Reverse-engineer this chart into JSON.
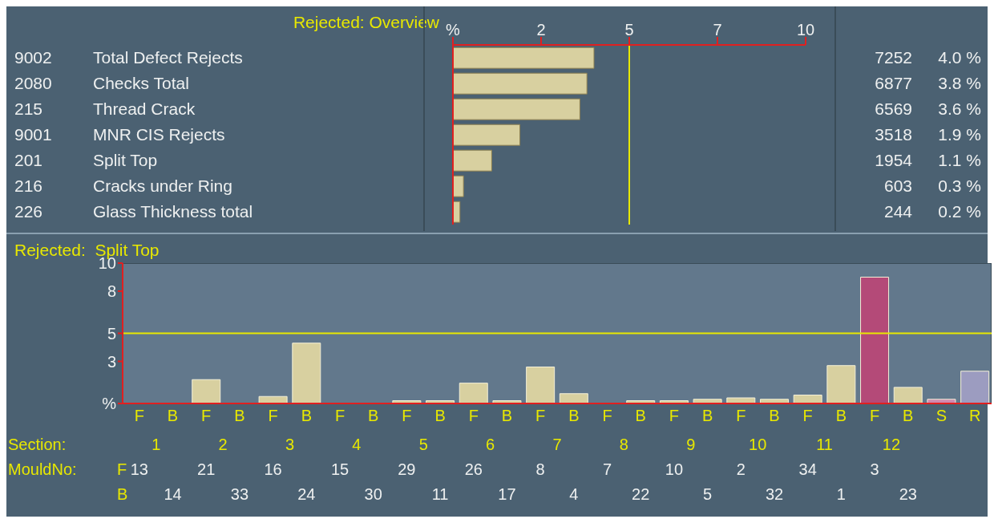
{
  "chart_data": [
    {
      "type": "bar",
      "orientation": "horizontal",
      "title": "Rejected: Overview",
      "categories": [
        "9002 Total Defect Rejects",
        "2080 Checks Total",
        "215 Thread Crack",
        "9001 MNR CIS Rejects",
        "201 Split Top",
        "216 Cracks under Ring",
        "226 Glass Thickness total"
      ],
      "values": [
        4.0,
        3.8,
        3.6,
        1.9,
        1.1,
        0.3,
        0.2
      ],
      "value_labels": [
        "7252 4.0 %",
        "6877 3.8 %",
        "6569 3.6 %",
        "3518 1.9 %",
        "1954 1.1 %",
        "603 0.3 %",
        "244 0.2 %"
      ],
      "color": "#d8d0a0",
      "xlim": [
        0,
        10
      ],
      "xticks": [
        {
          "value": 0,
          "label": "%"
        },
        {
          "value": 2.5,
          "label": "2"
        },
        5,
        {
          "value": 7.5,
          "label": "7"
        },
        10
      ],
      "ref_lines": [
        {
          "axis": "x",
          "value": 5,
          "color": "#e8e800"
        }
      ],
      "grid": false,
      "legend": false
    },
    {
      "type": "bar",
      "title": "Rejected:  Split Top",
      "categories": [
        "F",
        "B",
        "F",
        "B",
        "F",
        "B",
        "F",
        "B",
        "F",
        "B",
        "F",
        "B",
        "F",
        "B",
        "F",
        "B",
        "F",
        "B",
        "F",
        "B",
        "F",
        "B",
        "F",
        "B",
        "S",
        "R"
      ],
      "values": [
        0,
        0,
        1.7,
        0,
        0.5,
        4.3,
        0,
        0,
        0.2,
        0.2,
        1.45,
        0.2,
        2.6,
        0.7,
        0,
        0.2,
        0.2,
        0.3,
        0.4,
        0.3,
        0.6,
        2.7,
        9.0,
        1.15,
        0.3,
        2.3
      ],
      "colors": [
        "#d8d0a0",
        "#d8d0a0",
        "#d8d0a0",
        "#d8d0a0",
        "#d8d0a0",
        "#d8d0a0",
        "#d8d0a0",
        "#d8d0a0",
        "#d8d0a0",
        "#d8d0a0",
        "#d8d0a0",
        "#d8d0a0",
        "#d8d0a0",
        "#d8d0a0",
        "#d8d0a0",
        "#d8d0a0",
        "#d8d0a0",
        "#d8d0a0",
        "#d8d0a0",
        "#d8d0a0",
        "#d8d0a0",
        "#d8d0a0",
        "#b44a78",
        "#d8d0a0",
        "#d08ab0",
        "#9c9cc0"
      ],
      "ylim": [
        0,
        10
      ],
      "yticks": [
        {
          "value": 0,
          "label": "%"
        },
        3,
        5,
        8,
        10
      ],
      "ref_lines": [
        {
          "axis": "y",
          "value": 5,
          "color": "#e8e800"
        }
      ],
      "annotations": [
        "Section: 1 2 3 4 5 6 7 8 9 10 11 12",
        "MouldNo: F 13 21 16 15 29 26 8 7 10 2 34 3",
        "B 14 33 24 30 11 17 4 22 5 32 1 23"
      ],
      "grid": false,
      "legend": false
    }
  ]
}
